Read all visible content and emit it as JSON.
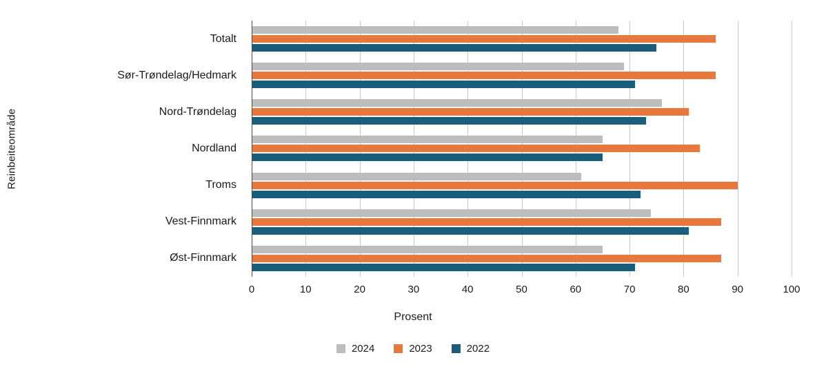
{
  "chart_data": {
    "type": "bar",
    "orientation": "horizontal",
    "title": "",
    "xlabel": "Prosent",
    "ylabel": "Reinbeiteområde",
    "xlim": [
      0,
      100
    ],
    "xticks": [
      0,
      10,
      20,
      30,
      40,
      50,
      60,
      70,
      80,
      90,
      100
    ],
    "grid": true,
    "legend_position": "bottom",
    "categories": [
      "Totalt",
      "Sør-Trøndelag/Hedmark",
      "Nord-Trøndelag",
      "Nordland",
      "Troms",
      "Vest-Finnmark",
      "Øst-Finnmark"
    ],
    "series": [
      {
        "name": "2024",
        "color": "#bcbcbc",
        "values": [
          68,
          69,
          76,
          65,
          61,
          74,
          65
        ]
      },
      {
        "name": "2023",
        "color": "#e8793e",
        "values": [
          86,
          86,
          81,
          83,
          90,
          87,
          87
        ]
      },
      {
        "name": "2022",
        "color": "#1a5e7c",
        "values": [
          75,
          71,
          73,
          65,
          72,
          81,
          71
        ]
      }
    ]
  }
}
